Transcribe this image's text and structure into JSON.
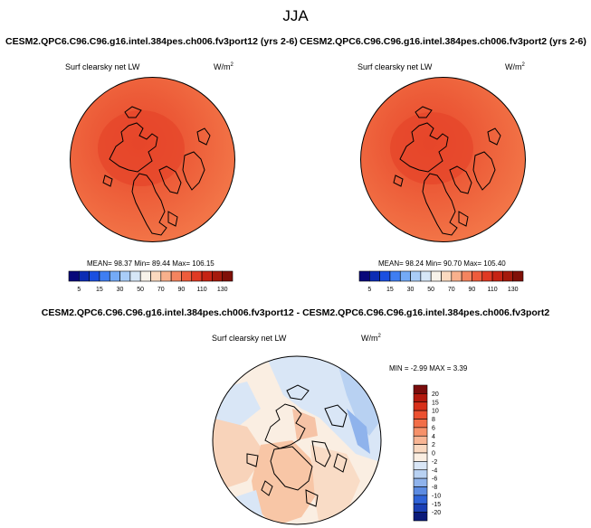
{
  "figure": {
    "season": "JJA",
    "panel_left": {
      "case_title": "CESM2.QPC6.C96.C96.g16.intel.384pes.ch006.fv3port12 (yrs 2-6)",
      "variable": "Surf clearsky net LW",
      "units_base": "W/m",
      "units_exp": "2",
      "stats": "MEAN=  98.37  Min=  89.44  Max= 106.15"
    },
    "panel_right": {
      "case_title": "CESM2.QPC6.C96.C96.g16.intel.384pes.ch006.fv3port2 (yrs 2-6)",
      "variable": "Surf clearsky net LW",
      "units_base": "W/m",
      "units_exp": "2",
      "stats": "MEAN=  98.24  Min=  90.70  Max= 105.40"
    },
    "panel_diff": {
      "title": "CESM2.QPC6.C96.C96.g16.intel.384pes.ch006.fv3port12 - CESM2.QPC6.C96.C96.g16.intel.384pes.ch006.fv3port2",
      "variable": "Surf clearsky net LW",
      "units_base": "W/m",
      "units_exp": "2",
      "stats": "MIN =  -2.99 MAX =   3.39"
    }
  },
  "colorbar_abs": {
    "ticks": [
      "5",
      "15",
      "30",
      "50",
      "70",
      "90",
      "110",
      "130"
    ],
    "colors": [
      "#08087a",
      "#0c2cb4",
      "#1a4fe0",
      "#3f7ef2",
      "#74aaf6",
      "#a9cdf8",
      "#d6e7f7",
      "#f8f3ea",
      "#fbd9bf",
      "#f8b08c",
      "#f4845f",
      "#ee5c3c",
      "#e03a23",
      "#c62414",
      "#a51a0c",
      "#801008"
    ]
  },
  "colorbar_diff": {
    "ticks": [
      "20",
      "15",
      "10",
      "8",
      "6",
      "4",
      "2",
      "0",
      "-2",
      "-4",
      "-6",
      "-8",
      "-10",
      "-15",
      "-20"
    ],
    "colors": [
      "#7a0c0c",
      "#b3190e",
      "#d8301a",
      "#ec5030",
      "#f26e48",
      "#f6916a",
      "#f8b594",
      "#f9d8c0",
      "#faeee2",
      "#d9e6f6",
      "#b8d1f2",
      "#8fb3ec",
      "#5c8be2",
      "#2f63d8",
      "#1a3fb5",
      "#0a1a7a"
    ]
  }
}
